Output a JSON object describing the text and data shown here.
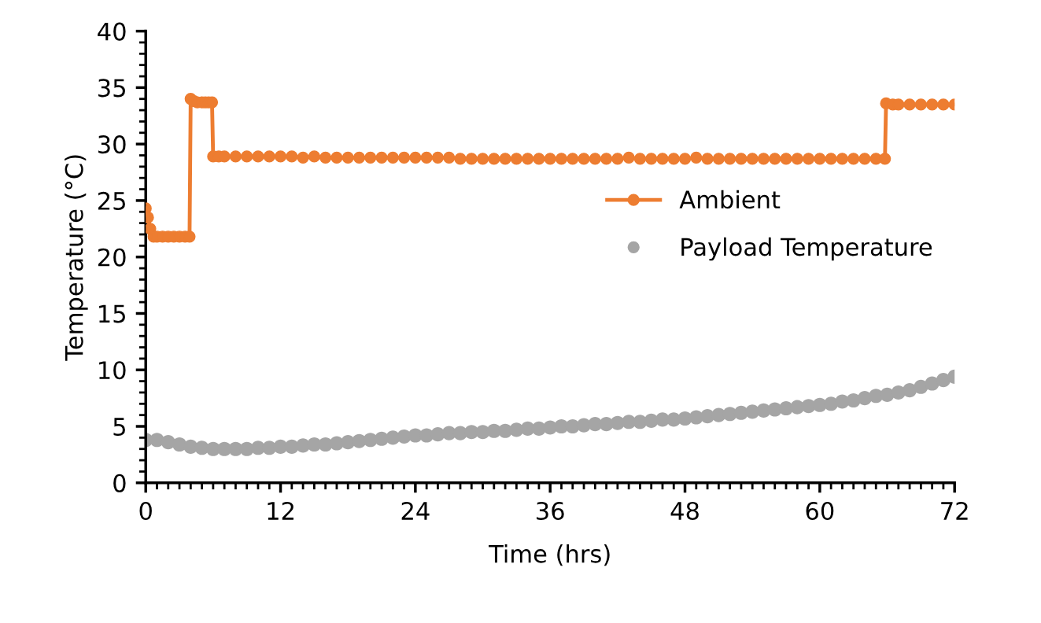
{
  "chart_data": {
    "type": "line",
    "xlabel": "Time (hrs)",
    "ylabel": "Temperature (°C)",
    "xlim": [
      0,
      72
    ],
    "xticks": [
      0,
      12,
      24,
      36,
      48,
      60,
      72
    ],
    "ylim": [
      0,
      40
    ],
    "yticks": [
      0,
      5,
      10,
      15,
      20,
      25,
      30,
      35,
      40
    ],
    "grid": false,
    "legend": "right",
    "marker": "circle",
    "series": [
      {
        "name": "Ambient",
        "color": "#ed7d31",
        "x": [
          0,
          0.2,
          0.4,
          0.7,
          1,
          1.5,
          2,
          2.5,
          3,
          3.5,
          3.9,
          4,
          4.3,
          4.6,
          5,
          5.3,
          5.6,
          5.9,
          6,
          6.5,
          7,
          8,
          9,
          10,
          11,
          12,
          13,
          14,
          15,
          16,
          17,
          18,
          19,
          20,
          21,
          22,
          23,
          24,
          25,
          26,
          27,
          28,
          29,
          30,
          31,
          32,
          33,
          34,
          35,
          36,
          37,
          38,
          39,
          40,
          41,
          42,
          43,
          44,
          45,
          46,
          47,
          48,
          49,
          50,
          51,
          52,
          53,
          54,
          55,
          56,
          57,
          58,
          59,
          60,
          61,
          62,
          63,
          64,
          65,
          65.8,
          65.9,
          66.5,
          67,
          68,
          69,
          70,
          71,
          72
        ],
        "values": [
          24.3,
          23.5,
          22.5,
          21.8,
          21.8,
          21.8,
          21.8,
          21.8,
          21.8,
          21.8,
          21.8,
          34.0,
          33.8,
          33.7,
          33.7,
          33.7,
          33.7,
          33.7,
          28.9,
          28.9,
          28.9,
          28.9,
          28.9,
          28.9,
          28.9,
          28.9,
          28.9,
          28.8,
          28.9,
          28.8,
          28.8,
          28.8,
          28.8,
          28.8,
          28.8,
          28.8,
          28.8,
          28.8,
          28.8,
          28.8,
          28.8,
          28.7,
          28.7,
          28.7,
          28.7,
          28.7,
          28.7,
          28.7,
          28.7,
          28.7,
          28.7,
          28.7,
          28.7,
          28.7,
          28.7,
          28.7,
          28.8,
          28.7,
          28.7,
          28.7,
          28.7,
          28.7,
          28.8,
          28.7,
          28.7,
          28.7,
          28.7,
          28.7,
          28.7,
          28.7,
          28.7,
          28.7,
          28.7,
          28.7,
          28.7,
          28.7,
          28.7,
          28.7,
          28.7,
          28.7,
          33.6,
          33.5,
          33.5,
          33.5,
          33.5,
          33.5,
          33.5,
          33.5
        ]
      },
      {
        "name": "Payload Temperature",
        "type": "scatter",
        "color": "#a5a5a5",
        "x": [
          0,
          1,
          2,
          3,
          4,
          5,
          6,
          7,
          8,
          9,
          10,
          11,
          12,
          13,
          14,
          15,
          16,
          17,
          18,
          19,
          20,
          21,
          22,
          23,
          24,
          25,
          26,
          27,
          28,
          29,
          30,
          31,
          32,
          33,
          34,
          35,
          36,
          37,
          38,
          39,
          40,
          41,
          42,
          43,
          44,
          45,
          46,
          47,
          48,
          49,
          50,
          51,
          52,
          53,
          54,
          55,
          56,
          57,
          58,
          59,
          60,
          61,
          62,
          63,
          64,
          65,
          66,
          67,
          68,
          69,
          70,
          71,
          72
        ],
        "values": [
          3.8,
          3.8,
          3.6,
          3.4,
          3.2,
          3.1,
          3.0,
          3.0,
          3.0,
          3.0,
          3.1,
          3.1,
          3.2,
          3.2,
          3.3,
          3.4,
          3.4,
          3.5,
          3.6,
          3.7,
          3.8,
          3.9,
          4.0,
          4.1,
          4.2,
          4.2,
          4.3,
          4.4,
          4.4,
          4.5,
          4.5,
          4.6,
          4.6,
          4.7,
          4.8,
          4.8,
          4.9,
          5.0,
          5.0,
          5.1,
          5.2,
          5.2,
          5.3,
          5.4,
          5.4,
          5.5,
          5.6,
          5.6,
          5.7,
          5.8,
          5.9,
          6.0,
          6.1,
          6.2,
          6.3,
          6.4,
          6.5,
          6.6,
          6.7,
          6.8,
          6.9,
          7.0,
          7.2,
          7.3,
          7.5,
          7.7,
          7.8,
          8.0,
          8.2,
          8.5,
          8.8,
          9.1,
          9.4
        ]
      }
    ]
  }
}
